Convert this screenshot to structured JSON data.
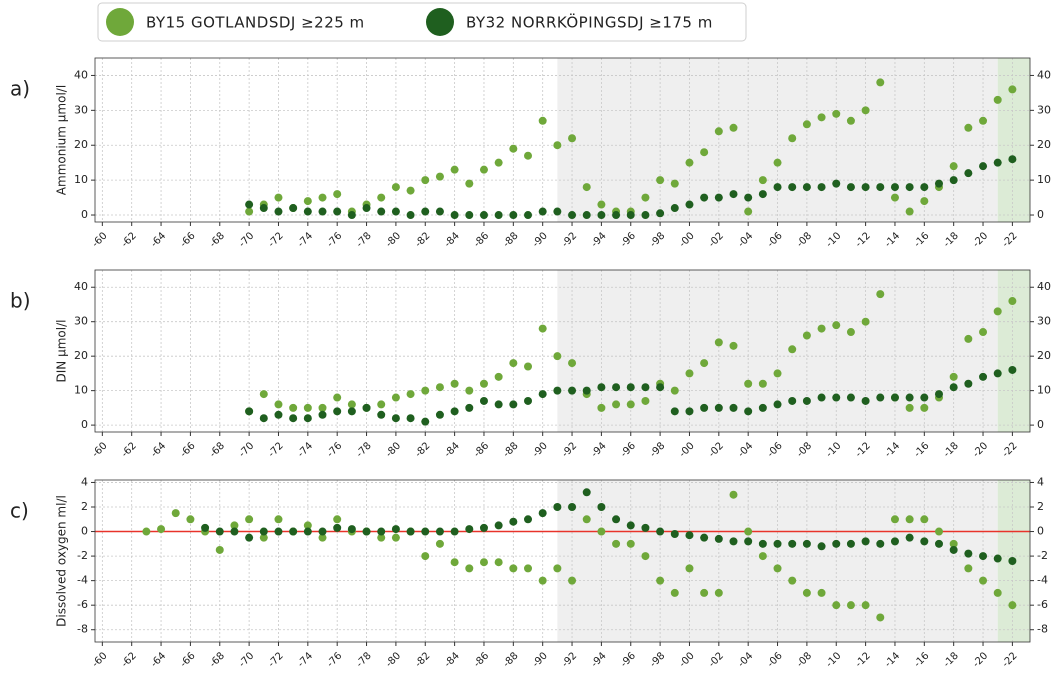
{
  "chart_data": [
    {
      "type": "scatter",
      "panel_label": "a)",
      "y_label": "Ammonium µmol/l",
      "xlim": [
        1959.5,
        2023.2
      ],
      "ylim": [
        -2,
        45
      ],
      "xticks": [
        {
          "value": 1960,
          "label": "-60"
        },
        {
          "value": 1962,
          "label": "-62"
        },
        {
          "value": 1964,
          "label": "-64"
        },
        {
          "value": 1966,
          "label": "-66"
        },
        {
          "value": 1968,
          "label": "-68"
        },
        {
          "value": 1970,
          "label": "-70"
        },
        {
          "value": 1972,
          "label": "-72"
        },
        {
          "value": 1974,
          "label": "-74"
        },
        {
          "value": 1976,
          "label": "-76"
        },
        {
          "value": 1978,
          "label": "-78"
        },
        {
          "value": 1980,
          "label": "-80"
        },
        {
          "value": 1982,
          "label": "-82"
        },
        {
          "value": 1984,
          "label": "-84"
        },
        {
          "value": 1986,
          "label": "-86"
        },
        {
          "value": 1988,
          "label": "-88"
        },
        {
          "value": 1990,
          "label": "-90"
        },
        {
          "value": 1992,
          "label": "-92"
        },
        {
          "value": 1994,
          "label": "-94"
        },
        {
          "value": 1996,
          "label": "-96"
        },
        {
          "value": 1998,
          "label": "-98"
        },
        {
          "value": 2000,
          "label": "-00"
        },
        {
          "value": 2002,
          "label": "-02"
        },
        {
          "value": 2004,
          "label": "-04"
        },
        {
          "value": 2006,
          "label": "-06"
        },
        {
          "value": 2008,
          "label": "-08"
        },
        {
          "value": 2010,
          "label": "-10"
        },
        {
          "value": 2012,
          "label": "-12"
        },
        {
          "value": 2014,
          "label": "-14"
        },
        {
          "value": 2016,
          "label": "-16"
        },
        {
          "value": 2018,
          "label": "-18"
        },
        {
          "value": 2020,
          "label": "-20"
        },
        {
          "value": 2022,
          "label": "-22"
        }
      ],
      "yticks": [
        0,
        10,
        20,
        30,
        40
      ],
      "grid": true,
      "shaded_regions": [
        {
          "from": 1991,
          "to": 2021,
          "color": "#efefef"
        },
        {
          "from": 2021,
          "to": 2023.2,
          "color": "#dcebd6"
        }
      ],
      "x": [
        1970,
        1971,
        1972,
        1973,
        1974,
        1975,
        1976,
        1977,
        1978,
        1979,
        1980,
        1981,
        1982,
        1983,
        1984,
        1985,
        1986,
        1987,
        1988,
        1989,
        1990,
        1991,
        1992,
        1993,
        1994,
        1995,
        1996,
        1997,
        1998,
        1999,
        2000,
        2001,
        2002,
        2003,
        2004,
        2005,
        2006,
        2007,
        2008,
        2009,
        2010,
        2011,
        2012,
        2013,
        2014,
        2015,
        2016,
        2017,
        2018,
        2019,
        2020,
        2021,
        2022
      ],
      "series": [
        {
          "name": "BY15 GOTLANDSDJ ≥225 m",
          "color": "#6fa83a",
          "values": [
            1,
            3,
            5,
            2,
            4,
            5,
            6,
            1,
            3,
            5,
            8,
            7,
            10,
            11,
            13,
            9,
            13,
            15,
            19,
            17,
            27,
            20,
            22,
            8,
            3,
            1,
            1,
            5,
            10,
            9,
            15,
            18,
            24,
            25,
            1,
            10,
            15,
            22,
            26,
            28,
            29,
            27,
            30,
            38,
            5,
            1,
            4,
            8,
            14,
            25,
            27,
            33,
            36
          ]
        },
        {
          "name": "BY32 NORRKÖPINGSDJ ≥175 m",
          "color": "#1f5f1f",
          "values": [
            3,
            2,
            1,
            2,
            1,
            1,
            1,
            0,
            2,
            1,
            1,
            0,
            1,
            1,
            0,
            0,
            0,
            0,
            0,
            0,
            1,
            1,
            0,
            0,
            0,
            0,
            0,
            0,
            0.5,
            2,
            3,
            5,
            5,
            6,
            5,
            6,
            8,
            8,
            8,
            8,
            9,
            8,
            8,
            8,
            8,
            8,
            8,
            9,
            10,
            12,
            14,
            15,
            16
          ]
        }
      ]
    },
    {
      "type": "scatter",
      "panel_label": "b)",
      "y_label": "DIN µmol/l",
      "xlim": [
        1959.5,
        2023.2
      ],
      "ylim": [
        -2,
        45
      ],
      "xticks": [
        {
          "value": 1960,
          "label": "-60"
        },
        {
          "value": 1962,
          "label": "-62"
        },
        {
          "value": 1964,
          "label": "-64"
        },
        {
          "value": 1966,
          "label": "-66"
        },
        {
          "value": 1968,
          "label": "-68"
        },
        {
          "value": 1970,
          "label": "-70"
        },
        {
          "value": 1972,
          "label": "-72"
        },
        {
          "value": 1974,
          "label": "-74"
        },
        {
          "value": 1976,
          "label": "-76"
        },
        {
          "value": 1978,
          "label": "-78"
        },
        {
          "value": 1980,
          "label": "-80"
        },
        {
          "value": 1982,
          "label": "-82"
        },
        {
          "value": 1984,
          "label": "-84"
        },
        {
          "value": 1986,
          "label": "-86"
        },
        {
          "value": 1988,
          "label": "-88"
        },
        {
          "value": 1990,
          "label": "-90"
        },
        {
          "value": 1992,
          "label": "-92"
        },
        {
          "value": 1994,
          "label": "-94"
        },
        {
          "value": 1996,
          "label": "-96"
        },
        {
          "value": 1998,
          "label": "-98"
        },
        {
          "value": 2000,
          "label": "-00"
        },
        {
          "value": 2002,
          "label": "-02"
        },
        {
          "value": 2004,
          "label": "-04"
        },
        {
          "value": 2006,
          "label": "-06"
        },
        {
          "value": 2008,
          "label": "-08"
        },
        {
          "value": 2010,
          "label": "-10"
        },
        {
          "value": 2012,
          "label": "-12"
        },
        {
          "value": 2014,
          "label": "-14"
        },
        {
          "value": 2016,
          "label": "-16"
        },
        {
          "value": 2018,
          "label": "-18"
        },
        {
          "value": 2020,
          "label": "-20"
        },
        {
          "value": 2022,
          "label": "-22"
        }
      ],
      "yticks": [
        0,
        10,
        20,
        30,
        40
      ],
      "grid": true,
      "shaded_regions": [
        {
          "from": 1991,
          "to": 2021,
          "color": "#efefef"
        },
        {
          "from": 2021,
          "to": 2023.2,
          "color": "#dcebd6"
        }
      ],
      "x": [
        1970,
        1971,
        1972,
        1973,
        1974,
        1975,
        1976,
        1977,
        1978,
        1979,
        1980,
        1981,
        1982,
        1983,
        1984,
        1985,
        1986,
        1987,
        1988,
        1989,
        1990,
        1991,
        1992,
        1993,
        1994,
        1995,
        1996,
        1997,
        1998,
        1999,
        2000,
        2001,
        2002,
        2003,
        2004,
        2005,
        2006,
        2007,
        2008,
        2009,
        2010,
        2011,
        2012,
        2013,
        2014,
        2015,
        2016,
        2017,
        2018,
        2019,
        2020,
        2021,
        2022
      ],
      "series": [
        {
          "name": "BY15 GOTLANDSDJ ≥225 m",
          "color": "#6fa83a",
          "values": [
            4,
            9,
            6,
            5,
            5,
            5,
            8,
            6,
            5,
            6,
            8,
            9,
            10,
            11,
            12,
            10,
            12,
            14,
            18,
            17,
            28,
            20,
            18,
            9,
            5,
            6,
            6,
            7,
            12,
            10,
            15,
            18,
            24,
            23,
            12,
            12,
            15,
            22,
            26,
            28,
            29,
            27,
            30,
            38,
            8,
            5,
            5,
            8,
            14,
            25,
            27,
            33,
            36
          ]
        },
        {
          "name": "BY32 NORRKÖPINGSDJ ≥175 m",
          "color": "#1f5f1f",
          "values": [
            4,
            2,
            3,
            2,
            2,
            3,
            4,
            4,
            5,
            3,
            2,
            2,
            1,
            3,
            4,
            5,
            7,
            6,
            6,
            7,
            9,
            10,
            10,
            10,
            11,
            11,
            11,
            11,
            11,
            4,
            4,
            5,
            5,
            5,
            4,
            5,
            6,
            7,
            7,
            8,
            8,
            8,
            7,
            8,
            8,
            8,
            8,
            9,
            11,
            12,
            14,
            15,
            16
          ]
        }
      ]
    },
    {
      "type": "scatter",
      "panel_label": "c)",
      "y_label": "Dissolved oxygen ml/l",
      "xlim": [
        1959.5,
        2023.2
      ],
      "ylim": [
        -9,
        4.2
      ],
      "xticks": [
        {
          "value": 1960,
          "label": "-60"
        },
        {
          "value": 1962,
          "label": "-62"
        },
        {
          "value": 1964,
          "label": "-64"
        },
        {
          "value": 1966,
          "label": "-66"
        },
        {
          "value": 1968,
          "label": "-68"
        },
        {
          "value": 1970,
          "label": "-70"
        },
        {
          "value": 1972,
          "label": "-72"
        },
        {
          "value": 1974,
          "label": "-74"
        },
        {
          "value": 1976,
          "label": "-76"
        },
        {
          "value": 1978,
          "label": "-78"
        },
        {
          "value": 1980,
          "label": "-80"
        },
        {
          "value": 1982,
          "label": "-82"
        },
        {
          "value": 1984,
          "label": "-84"
        },
        {
          "value": 1986,
          "label": "-86"
        },
        {
          "value": 1988,
          "label": "-88"
        },
        {
          "value": 1990,
          "label": "-90"
        },
        {
          "value": 1992,
          "label": "-92"
        },
        {
          "value": 1994,
          "label": "-94"
        },
        {
          "value": 1996,
          "label": "-96"
        },
        {
          "value": 1998,
          "label": "-98"
        },
        {
          "value": 2000,
          "label": "-00"
        },
        {
          "value": 2002,
          "label": "-02"
        },
        {
          "value": 2004,
          "label": "-04"
        },
        {
          "value": 2006,
          "label": "-06"
        },
        {
          "value": 2008,
          "label": "-08"
        },
        {
          "value": 2010,
          "label": "-10"
        },
        {
          "value": 2012,
          "label": "-12"
        },
        {
          "value": 2014,
          "label": "-14"
        },
        {
          "value": 2016,
          "label": "-16"
        },
        {
          "value": 2018,
          "label": "-18"
        },
        {
          "value": 2020,
          "label": "-20"
        },
        {
          "value": 2022,
          "label": "-22"
        }
      ],
      "yticks": [
        -8,
        -6,
        -4,
        -2,
        0,
        2,
        4
      ],
      "grid": true,
      "reference_line": {
        "value": 0,
        "color": "#e8332a"
      },
      "shaded_regions": [
        {
          "from": 1991,
          "to": 2021,
          "color": "#efefef"
        },
        {
          "from": 2021,
          "to": 2023.2,
          "color": "#dcebd6"
        }
      ],
      "x": [
        1963,
        1964,
        1965,
        1966,
        1967,
        1968,
        1969,
        1970,
        1971,
        1972,
        1973,
        1974,
        1975,
        1976,
        1977,
        1978,
        1979,
        1980,
        1981,
        1982,
        1983,
        1984,
        1985,
        1986,
        1987,
        1988,
        1989,
        1990,
        1991,
        1992,
        1993,
        1994,
        1995,
        1996,
        1997,
        1998,
        1999,
        2000,
        2001,
        2002,
        2003,
        2004,
        2005,
        2006,
        2007,
        2008,
        2009,
        2010,
        2011,
        2012,
        2013,
        2014,
        2015,
        2016,
        2017,
        2018,
        2019,
        2020,
        2021,
        2022
      ],
      "series": [
        {
          "name": "BY15 GOTLANDSDJ ≥225 m",
          "color": "#6fa83a",
          "values": [
            0,
            0.2,
            1.5,
            1,
            0,
            -1.5,
            0.5,
            1,
            -0.5,
            1,
            0,
            0.5,
            -0.5,
            1,
            0,
            0,
            -0.5,
            -0.5,
            0,
            -2,
            -1,
            -2.5,
            -3,
            -2.5,
            -2.5,
            -3,
            -3,
            -4,
            -3,
            -4,
            1,
            0,
            -1,
            -1,
            -2,
            -4,
            -5,
            -3,
            -5,
            -5,
            3,
            0,
            -2,
            -3,
            -4,
            -5,
            -5,
            -6,
            -6,
            -6,
            -7,
            1,
            1,
            1,
            0,
            -1,
            -3,
            -4,
            -5,
            -6
          ]
        },
        {
          "name": "BY32 NORRKÖPINGSDJ ≥175 m",
          "color": "#1f5f1f",
          "values": [
            null,
            null,
            null,
            null,
            0.3,
            0,
            0,
            -0.5,
            0,
            0,
            0,
            0,
            0,
            0.3,
            0.2,
            0,
            0,
            0.2,
            0,
            0,
            0,
            0,
            0.2,
            0.3,
            0.5,
            0.8,
            1,
            1.5,
            2,
            2,
            3.2,
            2,
            1,
            0.5,
            0.3,
            0,
            -0.2,
            -0.3,
            -0.5,
            -0.6,
            -0.8,
            -0.8,
            -1,
            -1,
            -1,
            -1,
            -1.2,
            -1,
            -1,
            -0.8,
            -1,
            -0.8,
            -0.5,
            -0.8,
            -1,
            -1.5,
            -1.8,
            -2,
            -2.2,
            -2.4
          ]
        }
      ]
    }
  ]
}
